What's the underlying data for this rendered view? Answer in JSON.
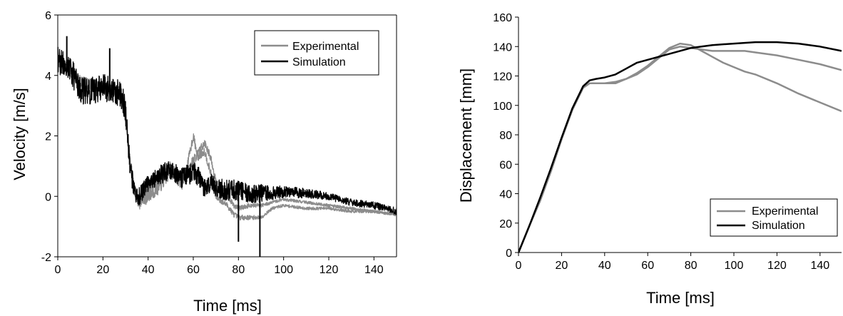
{
  "chart_data": [
    {
      "type": "line",
      "xlabel": "Time [ms]",
      "ylabel": "Velocity [m/s]",
      "xlim": [
        0,
        150
      ],
      "ylim": [
        -2,
        6
      ],
      "xticks": [
        "0",
        "20",
        "40",
        "60",
        "80",
        "100",
        "120",
        "140"
      ],
      "yticks": [
        "-2",
        "0",
        "2",
        "4",
        "6"
      ],
      "legend": {
        "placement": "top-right",
        "entries": [
          "Experimental",
          "Simulation"
        ]
      },
      "grid": false,
      "series": [
        {
          "name": "Experimental",
          "color": "#8c8c8c",
          "noise": [
            [
              0,
              0.2
            ],
            [
              32,
              0.15
            ],
            [
              36,
              0.25
            ],
            [
              75,
              0.1
            ],
            [
              95,
              0.05
            ],
            [
              150,
              0.05
            ]
          ],
          "lines": [
            {
              "x": [
                0,
                5,
                10,
                15,
                20,
                25,
                28,
                30,
                32,
                34,
                36,
                40,
                45,
                50,
                55,
                57,
                60,
                62,
                65,
                68,
                70,
                75,
                78,
                80,
                85,
                90,
                95,
                100,
                110,
                120,
                130,
                140,
                150
              ],
              "y": [
                4.5,
                4.2,
                3.8,
                3.7,
                3.6,
                3.5,
                3.3,
                2.6,
                1.2,
                0.2,
                -0.2,
                0.0,
                0.3,
                0.8,
                0.4,
                0.9,
                2.0,
                1.3,
                1.5,
                0.7,
                0.0,
                -0.3,
                -0.6,
                -0.7,
                -0.7,
                -0.7,
                -0.4,
                -0.3,
                -0.4,
                -0.4,
                -0.5,
                -0.5,
                -0.6
              ]
            },
            {
              "x": [
                0,
                5,
                10,
                15,
                20,
                25,
                28,
                30,
                32,
                34,
                36,
                40,
                45,
                50,
                55,
                57,
                60,
                62,
                65,
                68,
                70,
                75,
                78,
                80,
                85,
                90,
                95,
                100,
                110,
                120,
                130,
                140,
                150
              ],
              "y": [
                4.5,
                4.2,
                3.8,
                3.7,
                3.6,
                3.5,
                3.3,
                2.6,
                1.2,
                0.2,
                -0.2,
                0.2,
                0.6,
                1.0,
                0.6,
                0.8,
                1.2,
                1.4,
                1.8,
                1.2,
                0.5,
                0.0,
                -0.3,
                -0.4,
                -0.3,
                -0.3,
                -0.2,
                -0.1,
                -0.2,
                -0.3,
                -0.4,
                -0.5,
                -0.6
              ]
            }
          ]
        },
        {
          "name": "Simulation",
          "color": "#000000",
          "noise": [
            [
              0,
              0.45
            ],
            [
              30,
              0.45
            ],
            [
              34,
              0.3
            ],
            [
              40,
              0.3
            ],
            [
              60,
              0.35
            ],
            [
              80,
              0.35
            ],
            [
              90,
              0.3
            ],
            [
              100,
              0.2
            ],
            [
              120,
              0.12
            ],
            [
              150,
              0.12
            ]
          ],
          "spikes": [
            {
              "x": 80,
              "y": -1.5
            },
            {
              "x": 89.5,
              "y": -2.0
            },
            {
              "x": 23,
              "y": 4.9
            },
            {
              "x": 4,
              "y": 5.3
            }
          ],
          "lines": [
            {
              "x": [
                0,
                5,
                10,
                15,
                20,
                25,
                28,
                30,
                32,
                34,
                36,
                40,
                45,
                50,
                55,
                60,
                62,
                65,
                68,
                70,
                75,
                80,
                85,
                90,
                95,
                100,
                110,
                120,
                130,
                140,
                150
              ],
              "y": [
                4.5,
                4.3,
                3.5,
                3.5,
                3.6,
                3.5,
                3.4,
                2.8,
                1.0,
                0.1,
                0.0,
                0.4,
                0.7,
                0.9,
                0.6,
                0.8,
                0.7,
                0.3,
                0.4,
                0.3,
                0.2,
                0.2,
                0.1,
                0.1,
                0.1,
                0.15,
                0.1,
                0.0,
                -0.2,
                -0.3,
                -0.5
              ]
            }
          ]
        }
      ]
    },
    {
      "type": "line",
      "xlabel": "Time [ms]",
      "ylabel": "Displacement [mm]",
      "xlim": [
        0,
        150
      ],
      "ylim": [
        0,
        160
      ],
      "xticks": [
        "0",
        "20",
        "40",
        "60",
        "80",
        "100",
        "120",
        "140"
      ],
      "yticks": [
        "0",
        "20",
        "40",
        "60",
        "80",
        "100",
        "120",
        "140",
        "160"
      ],
      "legend": {
        "placement": "bottom-right",
        "entries": [
          "Experimental",
          "Simulation"
        ]
      },
      "grid": false,
      "series": [
        {
          "name": "Experimental",
          "color": "#8c8c8c",
          "lines": [
            {
              "x": [
                0,
                5,
                10,
                15,
                20,
                25,
                30,
                33,
                36,
                40,
                45,
                50,
                55,
                60,
                65,
                70,
                75,
                80,
                85,
                90,
                95,
                100,
                105,
                110,
                120,
                130,
                140,
                150
              ],
              "y": [
                0,
                18,
                35,
                55,
                77,
                97,
                112,
                115,
                115,
                115,
                115,
                118,
                122,
                127,
                133,
                139,
                142,
                141,
                137,
                133,
                129,
                126,
                123,
                121,
                115,
                108,
                102,
                96
              ]
            },
            {
              "x": [
                0,
                5,
                10,
                15,
                20,
                25,
                30,
                33,
                36,
                40,
                45,
                50,
                55,
                60,
                65,
                70,
                75,
                80,
                85,
                90,
                95,
                100,
                105,
                110,
                120,
                130,
                140,
                150
              ],
              "y": [
                0,
                18,
                35,
                55,
                77,
                97,
                112,
                115,
                115,
                115,
                116,
                118,
                121,
                126,
                132,
                138,
                140,
                139,
                138,
                137,
                137,
                137,
                137,
                136,
                134,
                131,
                128,
                124
              ]
            }
          ]
        },
        {
          "name": "Simulation",
          "color": "#000000",
          "lines": [
            {
              "x": [
                0,
                5,
                10,
                15,
                20,
                25,
                30,
                33,
                36,
                40,
                45,
                50,
                55,
                60,
                65,
                70,
                75,
                80,
                85,
                90,
                100,
                110,
                120,
                130,
                140,
                150
              ],
              "y": [
                0,
                18,
                37,
                57,
                78,
                98,
                113,
                117,
                118,
                119,
                121,
                125,
                129,
                131,
                133,
                135,
                137,
                139,
                140,
                141,
                142,
                143,
                143,
                142,
                140,
                137
              ]
            }
          ]
        }
      ]
    }
  ]
}
